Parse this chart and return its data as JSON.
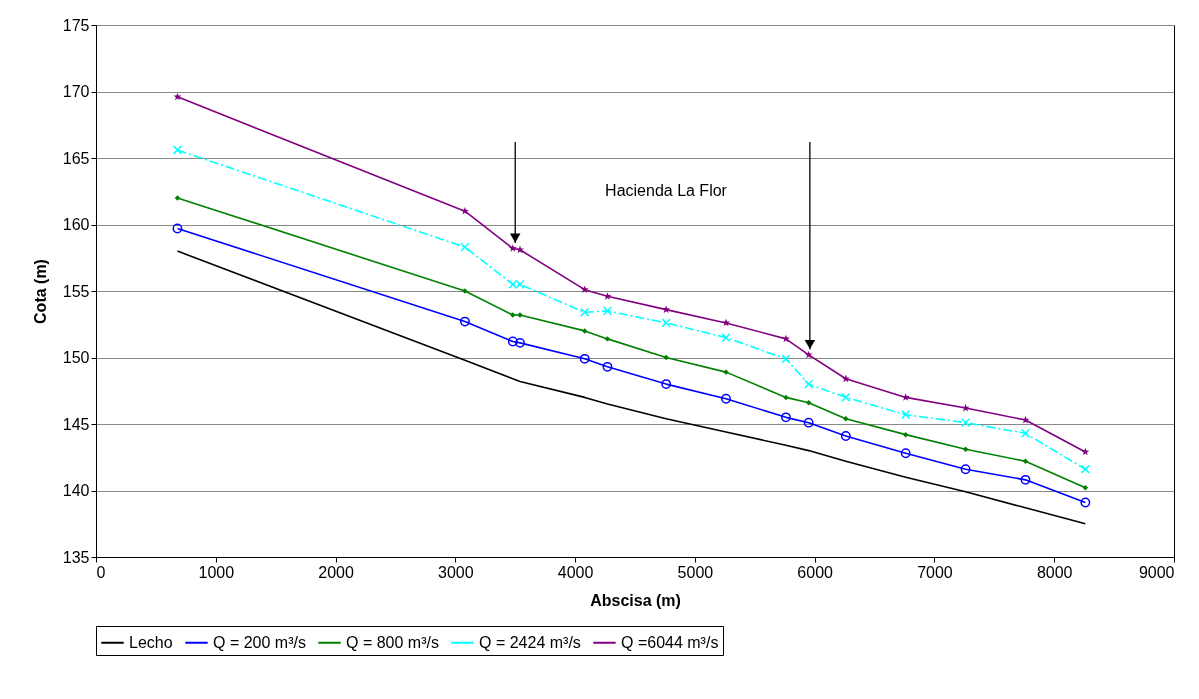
{
  "chart_data": {
    "type": "line",
    "xlabel": "Abscisa (m)",
    "ylabel": "Cota (m)",
    "x": [
      680,
      3080,
      3480,
      3540,
      4080,
      4270,
      4760,
      5260,
      5760,
      5950,
      6260,
      6760,
      7260,
      7760,
      8260
    ],
    "series": [
      {
        "name": "Lecho",
        "color": "#000000",
        "marker": "none",
        "line_style": "solid",
        "values": [
          158.0,
          149.8,
          148.4,
          148.2,
          147.0,
          146.5,
          145.4,
          144.4,
          143.4,
          143.0,
          142.2,
          141.0,
          139.9,
          138.7,
          137.5
        ]
      },
      {
        "name": "Q = 200 m³/s",
        "color": "#0000ff",
        "marker": "circle",
        "line_style": "solid",
        "values": [
          159.7,
          152.7,
          151.2,
          151.1,
          149.9,
          149.3,
          148.0,
          146.9,
          145.5,
          145.1,
          144.1,
          142.8,
          141.6,
          140.8,
          139.1
        ]
      },
      {
        "name": "Q = 800 m³/s",
        "color": "#008000",
        "marker": "diamond",
        "line_style": "solid",
        "values": [
          162.0,
          155.0,
          153.2,
          153.2,
          152.0,
          151.4,
          150.0,
          148.9,
          147.0,
          146.6,
          145.4,
          144.2,
          143.1,
          142.2,
          140.2
        ]
      },
      {
        "name": "Q = 2424 m³/s",
        "color": "#00ffff",
        "marker": "cross",
        "line_style": "dashed",
        "values": [
          165.6,
          158.3,
          155.5,
          155.5,
          153.4,
          153.5,
          152.6,
          151.5,
          149.9,
          148.0,
          147.0,
          145.7,
          145.1,
          144.3,
          141.6
        ]
      },
      {
        "name": "Q =6044 m³/s",
        "color": "#800080",
        "marker": "star",
        "line_style": "solid",
        "values": [
          169.6,
          161.0,
          158.2,
          158.1,
          155.1,
          154.6,
          153.6,
          152.6,
          151.4,
          150.2,
          148.4,
          147.0,
          146.2,
          145.3,
          142.9
        ]
      }
    ],
    "xlim": [
      0,
      9000
    ],
    "xticks": [
      0,
      1000,
      2000,
      3000,
      4000,
      5000,
      6000,
      7000,
      8000,
      9000
    ],
    "ylim": [
      135,
      175
    ],
    "yticks": [
      135,
      140,
      145,
      150,
      155,
      160,
      165,
      170,
      175
    ],
    "grid": "y",
    "legend": "bottom",
    "annotations": [
      "Hacienda La Flor"
    ]
  }
}
